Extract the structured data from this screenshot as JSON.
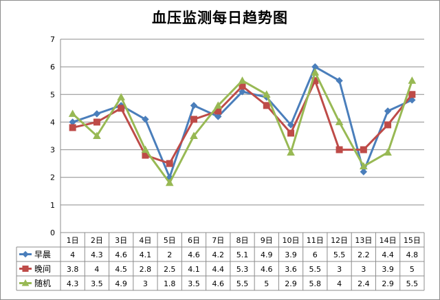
{
  "chart_data": {
    "type": "line",
    "title": "血压监测每日趋势图",
    "categories": [
      "1日",
      "2日",
      "3日",
      "4日",
      "5日",
      "6日",
      "7日",
      "8日",
      "9日",
      "10日",
      "11日",
      "12日",
      "13日",
      "14日",
      "15日"
    ],
    "ylim": [
      0,
      7
    ],
    "yticks": [
      "0",
      "1",
      "2",
      "3",
      "4",
      "5",
      "6",
      "7"
    ],
    "grid": true,
    "legend": "data-table",
    "series": [
      {
        "name": "早晨",
        "color": "#4a7ebb",
        "marker": "diamond",
        "values": [
          4,
          4.3,
          4.6,
          4.1,
          2,
          4.6,
          4.2,
          5.1,
          4.9,
          3.9,
          6,
          5.5,
          2.2,
          4.4,
          4.8
        ],
        "labels": [
          "4",
          "4.3",
          "4.6",
          "4.1",
          "2",
          "4.6",
          "4.2",
          "5.1",
          "4.9",
          "3.9",
          "6",
          "5.5",
          "2.2",
          "4.4",
          "4.8"
        ]
      },
      {
        "name": "晚间",
        "color": "#be4b48",
        "marker": "square",
        "values": [
          3.8,
          4,
          4.5,
          2.8,
          2.5,
          4.1,
          4.4,
          5.3,
          4.6,
          3.6,
          5.5,
          3,
          3,
          3.9,
          5
        ],
        "labels": [
          "3.8",
          "4",
          "4.5",
          "2.8",
          "2.5",
          "4.1",
          "4.4",
          "5.3",
          "4.6",
          "3.6",
          "5.5",
          "3",
          "3",
          "3.9",
          "5"
        ]
      },
      {
        "name": "随机",
        "color": "#98b954",
        "marker": "triangle",
        "values": [
          4.3,
          3.5,
          4.9,
          3,
          1.8,
          3.5,
          4.6,
          5.5,
          5,
          2.9,
          5.8,
          4,
          2.4,
          2.9,
          5.5
        ],
        "labels": [
          "4.3",
          "3.5",
          "4.9",
          "3",
          "1.8",
          "3.5",
          "4.6",
          "5.5",
          "5",
          "2.9",
          "5.8",
          "4",
          "2.4",
          "2.9",
          "5.5"
        ]
      }
    ]
  }
}
